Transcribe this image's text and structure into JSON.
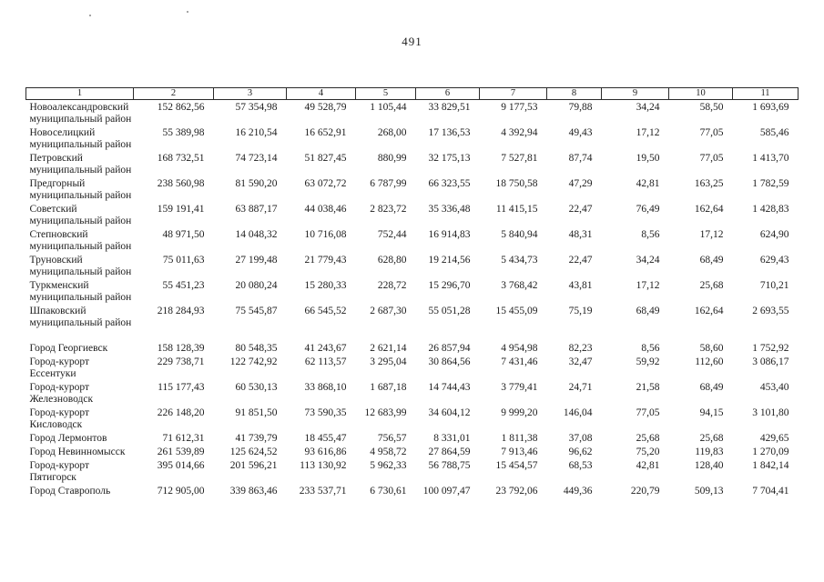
{
  "page": {
    "number": "491"
  },
  "table": {
    "headers": [
      "1",
      "2",
      "3",
      "4",
      "5",
      "6",
      "7",
      "8",
      "9",
      "10",
      "11"
    ],
    "rows": [
      {
        "name_lines": [
          "Новоалександровский",
          "муниципальный район"
        ],
        "values": [
          "152 862,56",
          "57 354,98",
          "49 528,79",
          "1 105,44",
          "33 829,51",
          "9 177,53",
          "79,88",
          "34,24",
          "58,50",
          "1 693,69"
        ],
        "spacer_before": false
      },
      {
        "name_lines": [
          "Новоселицкий",
          "муниципальный район"
        ],
        "values": [
          "55 389,98",
          "16 210,54",
          "16 652,91",
          "268,00",
          "17 136,53",
          "4 392,94",
          "49,43",
          "17,12",
          "77,05",
          "585,46"
        ],
        "spacer_before": false
      },
      {
        "name_lines": [
          "Петровский",
          "муниципальный район"
        ],
        "values": [
          "168 732,51",
          "74 723,14",
          "51 827,45",
          "880,99",
          "32 175,13",
          "7 527,81",
          "87,74",
          "19,50",
          "77,05",
          "1 413,70"
        ],
        "spacer_before": false
      },
      {
        "name_lines": [
          "Предгорный",
          "муниципальный район"
        ],
        "values": [
          "238 560,98",
          "81 590,20",
          "63 072,72",
          "6 787,99",
          "66 323,55",
          "18 750,58",
          "47,29",
          "42,81",
          "163,25",
          "1 782,59"
        ],
        "spacer_before": false
      },
      {
        "name_lines": [
          "Советский",
          "муниципальный район"
        ],
        "values": [
          "159 191,41",
          "63 887,17",
          "44 038,46",
          "2 823,72",
          "35 336,48",
          "11 415,15",
          "22,47",
          "76,49",
          "162,64",
          "1 428,83"
        ],
        "spacer_before": false
      },
      {
        "name_lines": [
          "Степновский",
          "муниципальный район"
        ],
        "values": [
          "48 971,50",
          "14 048,32",
          "10 716,08",
          "752,44",
          "16 914,83",
          "5 840,94",
          "48,31",
          "8,56",
          "17,12",
          "624,90"
        ],
        "spacer_before": false
      },
      {
        "name_lines": [
          "Труновский",
          "муниципальный район"
        ],
        "values": [
          "75 011,63",
          "27 199,48",
          "21 779,43",
          "628,80",
          "19 214,56",
          "5 434,73",
          "22,47",
          "34,24",
          "68,49",
          "629,43"
        ],
        "spacer_before": false
      },
      {
        "name_lines": [
          "Туркменский",
          "муниципальный район"
        ],
        "values": [
          "55 451,23",
          "20 080,24",
          "15 280,33",
          "228,72",
          "15 296,70",
          "3 768,42",
          "43,81",
          "17,12",
          "25,68",
          "710,21"
        ],
        "spacer_before": false
      },
      {
        "name_lines": [
          "Шпаковский",
          "муниципальный район"
        ],
        "values": [
          "218 284,93",
          "75 545,87",
          "66 545,52",
          "2 687,30",
          "55 051,28",
          "15 455,09",
          "75,19",
          "68,49",
          "162,64",
          "2 693,55"
        ],
        "spacer_before": false
      },
      {
        "name_lines": [
          "Город Георгиевск"
        ],
        "values": [
          "158 128,39",
          "80 548,35",
          "41 243,67",
          "2 621,14",
          "26 857,94",
          "4 954,98",
          "82,23",
          "8,56",
          "58,60",
          "1 752,92"
        ],
        "spacer_before": true
      },
      {
        "name_lines": [
          "Город-курорт",
          "Ессентуки"
        ],
        "values": [
          "229 738,71",
          "122 742,92",
          "62 113,57",
          "3 295,04",
          "30 864,56",
          "7 431,46",
          "32,47",
          "59,92",
          "112,60",
          "3 086,17"
        ],
        "spacer_before": false
      },
      {
        "name_lines": [
          "Город-курорт",
          "Железноводск"
        ],
        "values": [
          "115 177,43",
          "60 530,13",
          "33 868,10",
          "1 687,18",
          "14 744,43",
          "3 779,41",
          "24,71",
          "21,58",
          "68,49",
          "453,40"
        ],
        "spacer_before": false
      },
      {
        "name_lines": [
          "Город-курорт",
          "Кисловодск"
        ],
        "values": [
          "226 148,20",
          "91 851,50",
          "73 590,35",
          "12 683,99",
          "34 604,12",
          "9 999,20",
          "146,04",
          "77,05",
          "94,15",
          "3 101,80"
        ],
        "spacer_before": false
      },
      {
        "name_lines": [
          "Город Лермонтов"
        ],
        "values": [
          "71 612,31",
          "41 739,79",
          "18 455,47",
          "756,57",
          "8 331,01",
          "1 811,38",
          "37,08",
          "25,68",
          "25,68",
          "429,65"
        ],
        "spacer_before": false
      },
      {
        "name_lines": [
          "Город Невинномысск"
        ],
        "values": [
          "261 539,89",
          "125 624,52",
          "93 616,86",
          "4 958,72",
          "27 864,59",
          "7 913,46",
          "96,62",
          "75,20",
          "119,83",
          "1 270,09"
        ],
        "spacer_before": false
      },
      {
        "name_lines": [
          "Город-курорт",
          "Пятигорск"
        ],
        "values": [
          "395 014,66",
          "201 596,21",
          "113 130,92",
          "5 962,33",
          "56 788,75",
          "15 454,57",
          "68,53",
          "42,81",
          "128,40",
          "1 842,14"
        ],
        "spacer_before": false
      },
      {
        "name_lines": [
          "Город Ставрополь"
        ],
        "values": [
          "712 905,00",
          "339 863,46",
          "233 537,71",
          "6 730,61",
          "100 097,47",
          "23 792,06",
          "449,36",
          "220,79",
          "509,13",
          "7 704,41"
        ],
        "spacer_before": false
      }
    ]
  }
}
